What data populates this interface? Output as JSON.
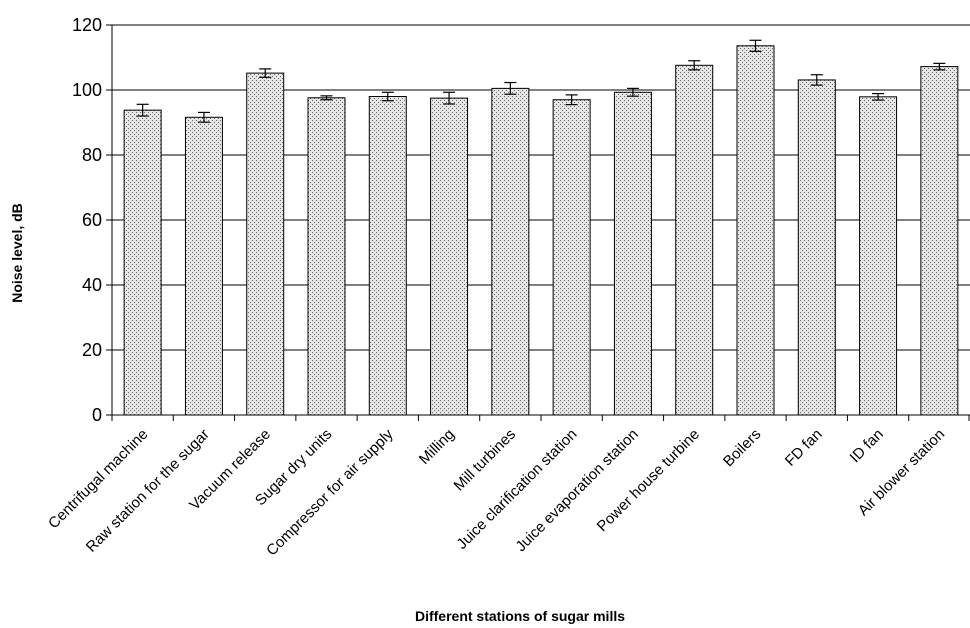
{
  "chart_data": {
    "type": "bar",
    "title": "",
    "xlabel": "Different stations of sugar mills",
    "ylabel": "Noise level, dB",
    "ylim": [
      0,
      120
    ],
    "yticks": [
      0,
      20,
      40,
      60,
      80,
      100,
      120
    ],
    "grid": true,
    "legend": "none",
    "categories": [
      "Centrifugal machine",
      "Raw station for the sugar",
      "Vacuum release",
      "Sugar dry units",
      "Compressor for air supply",
      "Milling",
      "Mill turbines",
      "Juice clarification station",
      "Juice evaporation station",
      "Power house turbine",
      "Boilers",
      "FD fan",
      "ID fan",
      "Air blower station"
    ],
    "values": [
      93.8,
      91.6,
      105.2,
      97.6,
      98.0,
      97.5,
      100.5,
      97.0,
      99.3,
      107.6,
      113.6,
      103.1,
      97.9,
      107.2
    ],
    "errors": [
      1.8,
      1.5,
      1.3,
      0.6,
      1.3,
      1.8,
      1.8,
      1.5,
      1.2,
      1.4,
      1.7,
      1.6,
      1.0,
      1.0
    ],
    "colors": {
      "bar_fill": "#e6e6e6",
      "bar_dots": "#666666",
      "bar_edge": "#000000",
      "grid": "#000000"
    }
  }
}
